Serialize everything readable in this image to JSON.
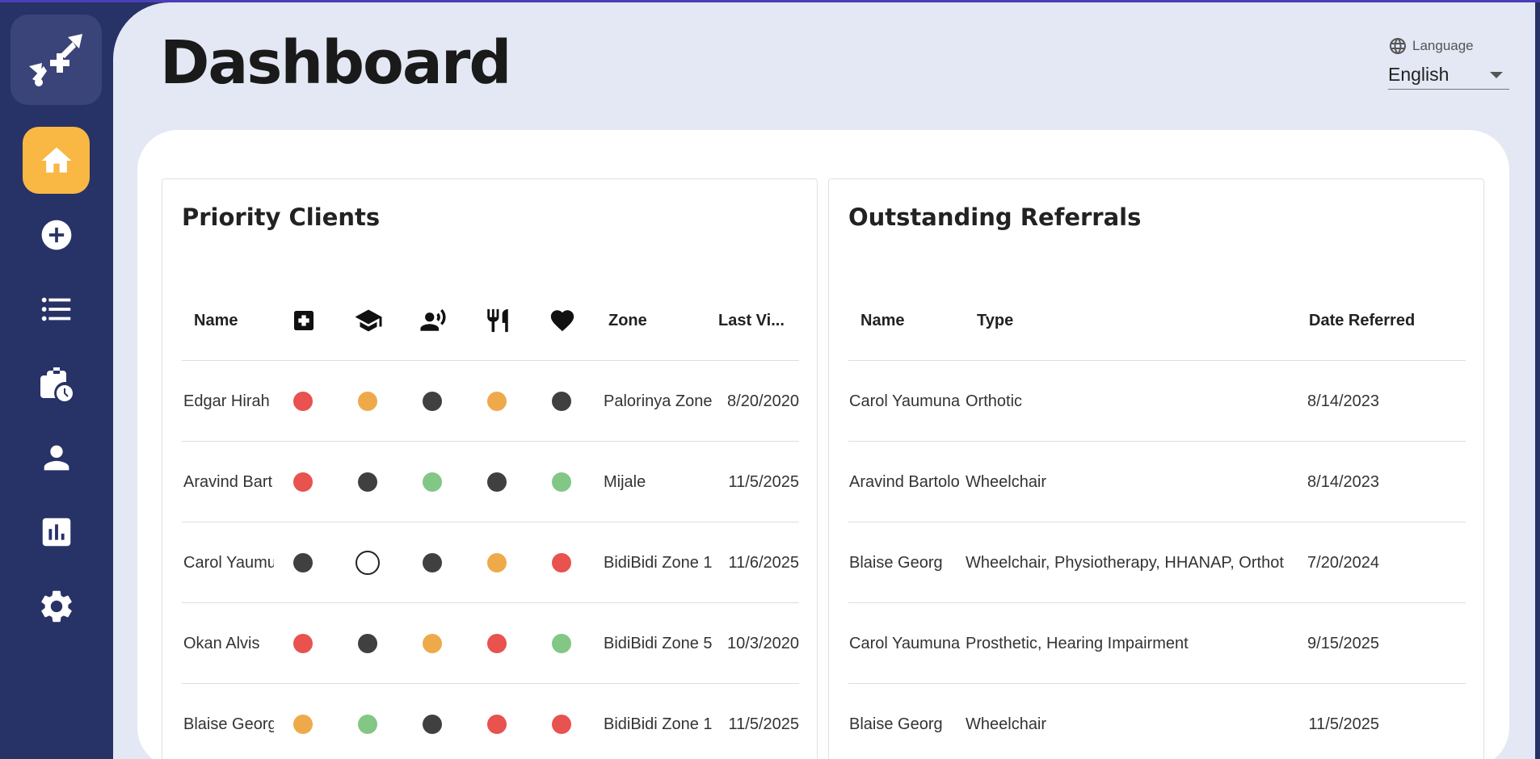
{
  "page": {
    "title": "Dashboard"
  },
  "colors": {
    "sidebar": "#273266",
    "active_nav": "#f9b744",
    "background": "#e3e8f4",
    "red": "#e8524f",
    "orange": "#eeaa4a",
    "dark": "#404040",
    "green": "#82c785"
  },
  "sidebar": {
    "items": [
      {
        "name": "home",
        "icon": "home-icon",
        "active": true
      },
      {
        "name": "add",
        "icon": "add-circle-icon",
        "active": false
      },
      {
        "name": "list",
        "icon": "list-icon",
        "active": false
      },
      {
        "name": "briefcase",
        "icon": "briefcase-clock-icon",
        "active": false
      },
      {
        "name": "profile",
        "icon": "person-icon",
        "active": false
      },
      {
        "name": "stats",
        "icon": "bar-chart-icon",
        "active": false
      },
      {
        "name": "settings",
        "icon": "gear-icon",
        "active": false
      }
    ]
  },
  "language": {
    "label": "Language",
    "value": "English"
  },
  "priority_clients": {
    "title": "Priority Clients",
    "headers": {
      "name": "Name",
      "zone": "Zone",
      "last_visit": "Last Vi..."
    },
    "icon_headers": [
      "health-icon",
      "education-icon",
      "social-icon",
      "food-icon",
      "heart-icon"
    ],
    "rows": [
      {
        "name": "Edgar Hirah",
        "statuses": [
          "red",
          "orange",
          "dark",
          "orange",
          "dark"
        ],
        "zone": "Palorinya Zone",
        "last_visit": "8/20/2020"
      },
      {
        "name": "Aravind Bart",
        "statuses": [
          "red",
          "dark",
          "green",
          "dark",
          "green"
        ],
        "zone": "Mijale",
        "last_visit": "11/5/2025"
      },
      {
        "name": "Carol Yaumu",
        "statuses": [
          "dark",
          "empty",
          "dark",
          "orange",
          "red"
        ],
        "zone": "BidiBidi Zone 1",
        "last_visit": "11/6/2025"
      },
      {
        "name": "Okan Alvis",
        "statuses": [
          "red",
          "dark",
          "orange",
          "red",
          "green"
        ],
        "zone": "BidiBidi Zone 5",
        "last_visit": "10/3/2020"
      },
      {
        "name": "Blaise Georg",
        "statuses": [
          "orange",
          "green",
          "dark",
          "red",
          "red"
        ],
        "zone": "BidiBidi Zone 1",
        "last_visit": "11/5/2025"
      }
    ]
  },
  "outstanding_referrals": {
    "title": "Outstanding Referrals",
    "headers": {
      "name": "Name",
      "type": "Type",
      "date": "Date Referred"
    },
    "rows": [
      {
        "name": "Carol Yaumuna",
        "type": "Orthotic",
        "date": "8/14/2023"
      },
      {
        "name": "Aravind Bartolo",
        "type": "Wheelchair",
        "date": "8/14/2023"
      },
      {
        "name": "Blaise Georg",
        "type": "Wheelchair, Physiotherapy, HHANAP, Orthot",
        "date": "7/20/2024"
      },
      {
        "name": "Carol Yaumuna",
        "type": "Prosthetic, Hearing Impairment",
        "date": "9/15/2025"
      },
      {
        "name": "Blaise Georg",
        "type": "Wheelchair",
        "date": "11/5/2025"
      }
    ]
  }
}
